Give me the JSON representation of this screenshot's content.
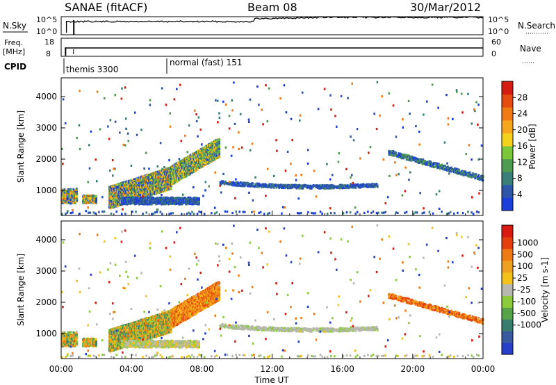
{
  "header": {
    "station": "SANAE (fitACF)",
    "beam": "Beam 08",
    "date": "30/Mar/2012"
  },
  "noise_panel": {
    "left_label": "N.Sky",
    "right_label": "N.Search",
    "ticks": [
      "10^5",
      "10^0"
    ],
    "right_ticks": [
      "10^5",
      "10^0"
    ]
  },
  "freq_panel": {
    "left_label_1": "Freq.",
    "left_label_2": "[MHz]",
    "left_ticks": [
      "18",
      "8"
    ],
    "right_label": "Nave",
    "right_ticks": [
      "60",
      "0"
    ]
  },
  "cpid": {
    "label": "CPID",
    "segments": [
      {
        "text": "themis 3300",
        "start_hour": 0.0
      },
      {
        "text": "normal (fast) 151",
        "start_hour": 6.0
      }
    ]
  },
  "chart_data": [
    {
      "type": "heatmap",
      "name": "power",
      "ylabel": "Slant Range [km]",
      "yticks": [
        1000,
        2000,
        3000,
        4000
      ],
      "ylim": [
        200,
        4600
      ],
      "xlim": [
        0,
        24
      ],
      "colorbar": {
        "label": "Power [dB]",
        "ticks": [
          "4",
          "8",
          "12",
          "16",
          "20",
          "24",
          "28"
        ],
        "colors": [
          "#1c3fdc",
          "#2f55a8",
          "#3a7f78",
          "#4f9b52",
          "#7cc63a",
          "#f2d21a",
          "#f6a61c",
          "#f27a14",
          "#e44b0f",
          "#d41c10"
        ]
      }
    },
    {
      "type": "heatmap",
      "name": "velocity",
      "ylabel": "Slant Range [km]",
      "xlabel": "Time UT",
      "yticks": [
        1000,
        2000,
        3000,
        4000
      ],
      "ylim": [
        200,
        4600
      ],
      "xlim": [
        0,
        24
      ],
      "xticks": [
        "00:00",
        "04:00",
        "08:00",
        "12:00",
        "16:00",
        "20:00",
        "00:00"
      ],
      "colorbar": {
        "label": "Velocity [m s-1]",
        "ticks": [
          "1000",
          "500",
          "100",
          "25",
          "-25",
          "-100",
          "-500",
          "-1000"
        ],
        "colors": [
          "#2840c8",
          "#3a5aa0",
          "#3a7d6e",
          "#58a24a",
          "#8ccc3c",
          "#b8b8b0",
          "#f2c21a",
          "#f0a020",
          "#ee7a14",
          "#e4400e",
          "#d81a12"
        ]
      }
    }
  ]
}
